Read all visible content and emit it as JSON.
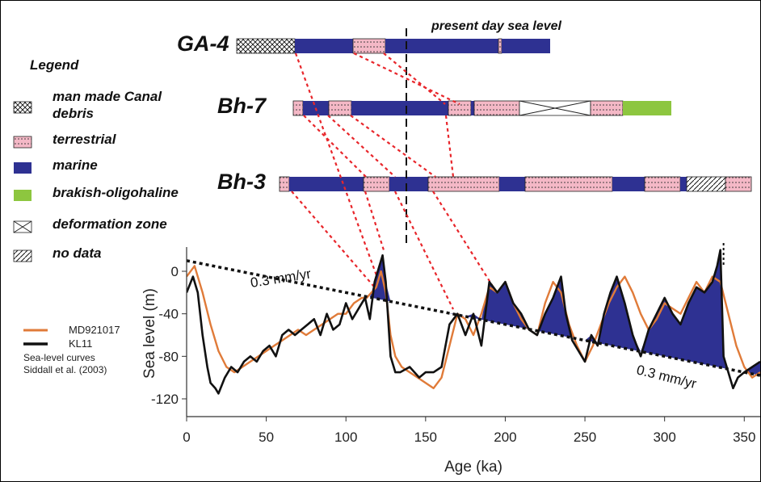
{
  "cores": [
    {
      "name": "GA-4",
      "segments": [
        {
          "type": "deformation_hatch",
          "from": 0,
          "to": 18
        },
        {
          "type": "marine",
          "from": 18,
          "to": 36
        },
        {
          "type": "terrestrial",
          "from": 36,
          "to": 46
        },
        {
          "type": "marine",
          "from": 46,
          "to": 81
        },
        {
          "type": "terrestrial",
          "from": 81,
          "to": 82
        },
        {
          "type": "marine",
          "from": 82,
          "to": 97
        }
      ]
    },
    {
      "name": "Bh-7",
      "segments": [
        {
          "type": "terrestrial",
          "from": 0,
          "to": 3
        },
        {
          "type": "marine",
          "from": 3,
          "to": 11
        },
        {
          "type": "terrestrial",
          "from": 11,
          "to": 18
        },
        {
          "type": "marine",
          "from": 18,
          "to": 48
        },
        {
          "type": "terrestrial",
          "from": 48,
          "to": 55
        },
        {
          "type": "marine",
          "from": 55,
          "to": 56
        },
        {
          "type": "terrestrial",
          "from": 56,
          "to": 70
        },
        {
          "type": "deformation",
          "from": 70,
          "to": 92
        },
        {
          "type": "terrestrial",
          "from": 92,
          "to": 102
        },
        {
          "type": "brackish",
          "from": 102,
          "to": 117
        }
      ]
    },
    {
      "name": "Bh-3",
      "segments": [
        {
          "type": "terrestrial",
          "from": 0,
          "to": 3
        },
        {
          "type": "marine",
          "from": 3,
          "to": 26
        },
        {
          "type": "terrestrial",
          "from": 26,
          "to": 34
        },
        {
          "type": "marine",
          "from": 34,
          "to": 46
        },
        {
          "type": "terrestrial",
          "from": 46,
          "to": 68
        },
        {
          "type": "marine",
          "from": 68,
          "to": 76
        },
        {
          "type": "terrestrial",
          "from": 76,
          "to": 103
        },
        {
          "type": "marine",
          "from": 103,
          "to": 113
        },
        {
          "type": "terrestrial",
          "from": 113,
          "to": 124
        },
        {
          "type": "marine",
          "from": 124,
          "to": 126
        },
        {
          "type": "no_data",
          "from": 126,
          "to": 138
        },
        {
          "type": "terrestrial",
          "from": 138,
          "to": 146
        }
      ]
    }
  ],
  "legend": {
    "title": "Legend",
    "items": [
      {
        "type": "canal",
        "label_lines": [
          "man made Canal",
          "debris"
        ]
      },
      {
        "type": "terrestrial",
        "label_lines": [
          "terrestrial"
        ]
      },
      {
        "type": "marine",
        "label_lines": [
          "marine"
        ]
      },
      {
        "type": "brackish",
        "label_lines": [
          "brakish-oligohaline"
        ]
      },
      {
        "type": "deformation",
        "label_lines": [
          "deformation zone"
        ]
      },
      {
        "type": "no_data",
        "label_lines": [
          "no data"
        ]
      }
    ]
  },
  "present_day_label": "present day sea level",
  "colors": {
    "marine": "#2e3192",
    "terrestrial": "#f4b8c6",
    "brackish": "#8dc63f",
    "md_curve": "#e07b39",
    "kl_curve": "#111111",
    "correlation": "#e8262b",
    "highstand_fill": "#2e3192"
  },
  "chart_data": {
    "type": "line",
    "xlabel": "Age (ka)",
    "ylabel": "Sea level (m)",
    "xlim": [
      0,
      360
    ],
    "ylim": [
      -140,
      20
    ],
    "xticks": [
      0,
      50,
      100,
      150,
      200,
      250,
      300,
      350
    ],
    "yticks": [
      0,
      -40,
      -80,
      -120
    ],
    "series": [
      {
        "name": "KL11",
        "x": [
          0,
          4,
          7,
          10,
          13,
          15,
          18,
          20,
          24,
          28,
          32,
          36,
          40,
          44,
          48,
          52,
          56,
          60,
          64,
          68,
          72,
          76,
          80,
          84,
          88,
          92,
          96,
          100,
          104,
          108,
          112,
          115,
          118,
          121,
          123,
          125,
          128,
          131,
          134,
          140,
          146,
          150,
          155,
          160,
          165,
          170,
          175,
          180,
          185,
          190,
          195,
          200,
          205,
          210,
          215,
          220,
          225,
          230,
          235,
          238,
          242,
          246,
          250,
          254,
          258,
          262,
          266,
          270,
          275,
          280,
          285,
          290,
          295,
          300,
          305,
          310,
          315,
          320,
          325,
          330,
          333,
          335,
          337,
          340,
          343,
          346,
          350,
          355,
          360
        ],
        "values": [
          -20,
          -5,
          -20,
          -60,
          -90,
          -105,
          -110,
          -115,
          -100,
          -90,
          -95,
          -85,
          -80,
          -85,
          -75,
          -70,
          -80,
          -60,
          -55,
          -60,
          -55,
          -50,
          -45,
          -60,
          -40,
          -55,
          -50,
          -30,
          -45,
          -35,
          -25,
          -45,
          -10,
          5,
          15,
          -10,
          -80,
          -95,
          -95,
          -90,
          -100,
          -95,
          -95,
          -90,
          -50,
          -40,
          -60,
          -40,
          -70,
          -10,
          -20,
          -10,
          -30,
          -40,
          -55,
          -60,
          -40,
          -25,
          -5,
          -40,
          -65,
          -75,
          -85,
          -60,
          -70,
          -40,
          -20,
          -5,
          -30,
          -60,
          -80,
          -55,
          -40,
          -25,
          -40,
          -50,
          -30,
          -15,
          -20,
          -10,
          5,
          20,
          -80,
          -95,
          -110,
          -100,
          -95,
          -90,
          -85
        ]
      },
      {
        "name": "MD921017",
        "x": [
          0,
          5,
          10,
          15,
          20,
          25,
          30,
          35,
          40,
          45,
          50,
          55,
          60,
          65,
          70,
          75,
          80,
          85,
          90,
          95,
          100,
          105,
          110,
          113,
          116,
          119,
          122,
          125,
          128,
          131,
          135,
          140,
          145,
          150,
          155,
          160,
          165,
          170,
          175,
          180,
          185,
          190,
          195,
          200,
          205,
          210,
          215,
          220,
          225,
          230,
          235,
          240,
          245,
          250,
          255,
          260,
          265,
          270,
          275,
          280,
          285,
          290,
          295,
          300,
          305,
          310,
          315,
          320,
          325,
          330,
          335,
          340,
          345,
          350,
          355,
          360
        ],
        "values": [
          -5,
          5,
          -20,
          -50,
          -75,
          -90,
          -95,
          -90,
          -85,
          -80,
          -75,
          -70,
          -65,
          -60,
          -55,
          -60,
          -55,
          -50,
          -45,
          -40,
          -40,
          -30,
          -25,
          -25,
          -20,
          -15,
          0,
          -20,
          -60,
          -80,
          -90,
          -95,
          -100,
          -105,
          -110,
          -100,
          -70,
          -40,
          -45,
          -60,
          -40,
          -15,
          -20,
          -10,
          -30,
          -45,
          -55,
          -60,
          -30,
          -10,
          -20,
          -50,
          -70,
          -85,
          -70,
          -50,
          -30,
          -15,
          -5,
          -20,
          -40,
          -55,
          -45,
          -30,
          -35,
          -40,
          -25,
          -10,
          -20,
          -5,
          -10,
          -40,
          -70,
          -90,
          -100,
          -95
        ]
      },
      {
        "name": "0.3 mm/yr",
        "x": [
          0,
          360
        ],
        "values": [
          10,
          -98
        ]
      }
    ],
    "annotations": [
      "0.3 mm/yr",
      "0.3 mm/yr"
    ],
    "curve_source_lines": [
      "Sea-level curves",
      "Siddall et al. (2003)"
    ],
    "grid": false
  }
}
